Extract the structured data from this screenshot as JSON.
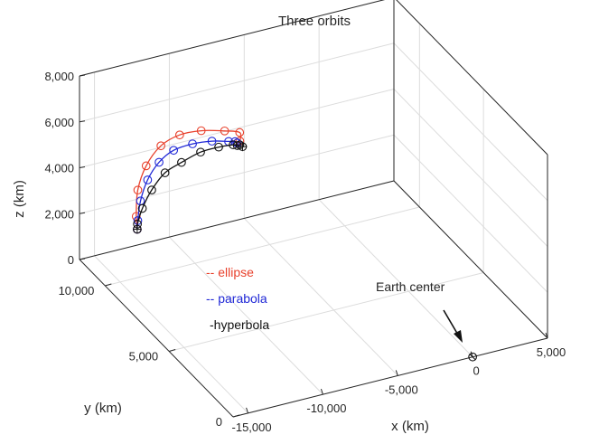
{
  "chart_data": {
    "type": "line3d",
    "title": "Three orbits",
    "xlabel": "x (km)",
    "ylabel": "y (km)",
    "zlabel": "z (km)",
    "xlim": [
      -16000,
      5000
    ],
    "ylim": [
      0,
      12000
    ],
    "zlim": [
      0,
      8000
    ],
    "xticks": [
      -15000,
      -10000,
      -5000,
      0,
      5000
    ],
    "xtick_labels": [
      "-15,000",
      "-10,000",
      "-5,000",
      "0",
      "5,000"
    ],
    "yticks": [
      0,
      5000,
      10000
    ],
    "ytick_labels": [
      "0",
      "5,000",
      "10,000"
    ],
    "zticks": [
      0,
      2000,
      4000,
      6000,
      8000
    ],
    "ztick_labels": [
      "0",
      "2,000",
      "4,000",
      "6,000",
      "8,000"
    ],
    "grid": true,
    "legend_position": "inside-left",
    "series": [
      {
        "name": "ellipse",
        "legend_label": "-- ellipse",
        "color": "#e8412c",
        "points": [
          [
            -13000,
            11000,
            1400
          ],
          [
            -13220,
            10820,
            2100
          ],
          [
            -13440,
            10440,
            3500
          ],
          [
            -13430,
            9800,
            4920
          ],
          [
            -13100,
            9030,
            6180
          ],
          [
            -12440,
            8340,
            6940
          ],
          [
            -11410,
            7860,
            7230
          ],
          [
            -9950,
            7740,
            7050
          ],
          [
            -8440,
            8330,
            6400
          ],
          [
            -7810,
            9050,
            5510
          ],
          [
            -7640,
            9450,
            5170
          ]
        ]
      },
      {
        "name": "parabola",
        "legend_label": "-- parabola",
        "color": "#1f27d6",
        "points": [
          [
            -13000,
            11000,
            1400
          ],
          [
            -13080,
            10860,
            1870
          ],
          [
            -13160,
            10560,
            2910
          ],
          [
            -13040,
            10140,
            4050
          ],
          [
            -12670,
            9680,
            5020
          ],
          [
            -12150,
            9150,
            5760
          ],
          [
            -11290,
            8680,
            6170
          ],
          [
            -10190,
            8450,
            6240
          ],
          [
            -8880,
            8680,
            5880
          ],
          [
            -8160,
            9020,
            5560
          ],
          [
            -7640,
            9450,
            5170
          ]
        ]
      },
      {
        "name": "hyperbola",
        "legend_label": "-hyperbola",
        "color": "#111111",
        "points": [
          [
            -13000,
            11000,
            1400
          ],
          [
            -13080,
            10890,
            1700
          ],
          [
            -12990,
            10610,
            2530
          ],
          [
            -12690,
            10230,
            3500
          ],
          [
            -12170,
            9800,
            4410
          ],
          [
            -11520,
            9270,
            5060
          ],
          [
            -10580,
            8880,
            5580
          ],
          [
            -9490,
            8740,
            5700
          ],
          [
            -8450,
            8830,
            5580
          ],
          [
            -7930,
            9110,
            5300
          ],
          [
            -7540,
            9370,
            5120
          ]
        ]
      }
    ],
    "earth_center": {
      "label": "Earth center",
      "position": [
        0,
        0,
        0
      ]
    },
    "endpoint_marker": "⊕"
  }
}
